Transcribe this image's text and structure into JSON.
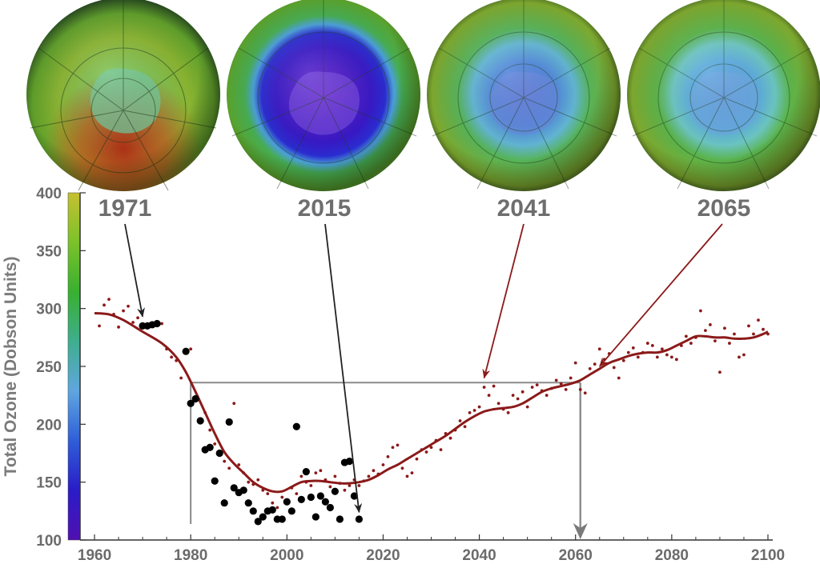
{
  "chart_data": {
    "type": "scatter",
    "ylabel": "Total Ozone (Dobson Units)",
    "xlabel": "",
    "title": "",
    "xlim": [
      1957,
      2101
    ],
    "ylim": [
      100,
      400
    ],
    "x_ticks": [
      1960,
      1980,
      2000,
      2020,
      2040,
      2060,
      2080,
      2100
    ],
    "y_ticks": [
      100,
      150,
      200,
      250,
      300,
      350,
      400
    ],
    "grid": false,
    "colorbar": {
      "range": [
        100,
        400
      ],
      "colors": [
        "#5010b0",
        "#2a1cc8",
        "#2f5ed8",
        "#5fa6e0",
        "#3fae8e",
        "#38b030",
        "#7cc22a",
        "#c6c030"
      ]
    },
    "colors": {
      "observations": "#000000",
      "model_points": "#8b1a1a",
      "model_curve": "#8b1a1a",
      "reference_lines": "#8a8a8a",
      "arrow_dark": "#222222",
      "arrow_red": "#8b1a1a",
      "arrow_gray": "#7a7a7a"
    },
    "map_years": [
      "1971",
      "2015",
      "2041",
      "2065"
    ],
    "map_arrows": [
      {
        "year": "1971",
        "target_x": 1970,
        "target_y": 293,
        "color": "arrow_dark"
      },
      {
        "year": "2015",
        "target_x": 2015,
        "target_y": 124,
        "color": "arrow_dark"
      },
      {
        "year": "2041",
        "target_x": 2041,
        "target_y": 240,
        "color": "arrow_red"
      },
      {
        "year": "2065",
        "target_x": 2065,
        "target_y": 250,
        "color": "arrow_red"
      }
    ],
    "reference_level": {
      "y": 236,
      "x_start": 1980,
      "x_end": 2061,
      "arrow_x": 2061
    },
    "series": [
      {
        "kind": "observations",
        "points": [
          [
            1970,
            285
          ],
          [
            1971,
            285
          ],
          [
            1972,
            286
          ],
          [
            1973,
            287
          ],
          [
            1979,
            263
          ],
          [
            1980,
            218
          ],
          [
            1981,
            222
          ],
          [
            1982,
            203
          ],
          [
            1983,
            178
          ],
          [
            1984,
            180
          ],
          [
            1985,
            151
          ],
          [
            1986,
            175
          ],
          [
            1987,
            132
          ],
          [
            1988,
            202
          ],
          [
            1989,
            145
          ],
          [
            1990,
            141
          ],
          [
            1991,
            143
          ],
          [
            1992,
            132
          ],
          [
            1993,
            125
          ],
          [
            1994,
            116
          ],
          [
            1995,
            120
          ],
          [
            1996,
            125
          ],
          [
            1997,
            126
          ],
          [
            1998,
            118
          ],
          [
            1999,
            118
          ],
          [
            2000,
            133
          ],
          [
            2001,
            125
          ],
          [
            2002,
            198
          ],
          [
            2003,
            135
          ],
          [
            2004,
            159
          ],
          [
            2005,
            137
          ],
          [
            2006,
            120
          ],
          [
            2007,
            138
          ],
          [
            2008,
            133
          ],
          [
            2009,
            128
          ],
          [
            2010,
            142
          ],
          [
            2011,
            118
          ],
          [
            2012,
            167
          ],
          [
            2013,
            168
          ],
          [
            2014,
            138
          ],
          [
            2015,
            118
          ]
        ]
      },
      {
        "kind": "model_points",
        "points": [
          [
            1961,
            285
          ],
          [
            1962,
            303
          ],
          [
            1963,
            308
          ],
          [
            1964,
            295
          ],
          [
            1965,
            284
          ],
          [
            1966,
            298
          ],
          [
            1967,
            302
          ],
          [
            1968,
            288
          ],
          [
            1969,
            292
          ],
          [
            1974,
            287
          ],
          [
            1975,
            265
          ],
          [
            1976,
            258
          ],
          [
            1977,
            255
          ],
          [
            1978,
            240
          ],
          [
            1979,
            264
          ],
          [
            1980,
            265
          ],
          [
            1981,
            220
          ],
          [
            1983,
            210
          ],
          [
            1984,
            195
          ],
          [
            1985,
            183
          ],
          [
            1986,
            175
          ],
          [
            1987,
            168
          ],
          [
            1988,
            162
          ],
          [
            1989,
            218
          ],
          [
            1990,
            165
          ],
          [
            1991,
            158
          ],
          [
            1992,
            150
          ],
          [
            1993,
            148
          ],
          [
            1994,
            152
          ],
          [
            1995,
            143
          ],
          [
            1996,
            140
          ],
          [
            1997,
            132
          ],
          [
            1998,
            128
          ],
          [
            1999,
            137
          ],
          [
            2000,
            134
          ],
          [
            2001,
            145
          ],
          [
            2002,
            140
          ],
          [
            2003,
            155
          ],
          [
            2004,
            150
          ],
          [
            2005,
            147
          ],
          [
            2006,
            158
          ],
          [
            2007,
            160
          ],
          [
            2008,
            152
          ],
          [
            2009,
            146
          ],
          [
            2010,
            155
          ],
          [
            2011,
            149
          ],
          [
            2012,
            143
          ],
          [
            2013,
            147
          ],
          [
            2014,
            152
          ],
          [
            2015,
            147
          ],
          [
            2016,
            151
          ],
          [
            2017,
            155
          ],
          [
            2018,
            160
          ],
          [
            2019,
            157
          ],
          [
            2020,
            165
          ],
          [
            2021,
            172
          ],
          [
            2022,
            180
          ],
          [
            2023,
            182
          ],
          [
            2024,
            162
          ],
          [
            2025,
            155
          ],
          [
            2026,
            158
          ],
          [
            2027,
            170
          ],
          [
            2028,
            178
          ],
          [
            2029,
            176
          ],
          [
            2030,
            180
          ],
          [
            2031,
            186
          ],
          [
            2032,
            178
          ],
          [
            2033,
            192
          ],
          [
            2034,
            188
          ],
          [
            2035,
            195
          ],
          [
            2036,
            203
          ],
          [
            2037,
            198
          ],
          [
            2038,
            210
          ],
          [
            2039,
            212
          ],
          [
            2040,
            215
          ],
          [
            2041,
            232
          ],
          [
            2042,
            225
          ],
          [
            2043,
            233
          ],
          [
            2044,
            218
          ],
          [
            2045,
            213
          ],
          [
            2046,
            210
          ],
          [
            2047,
            225
          ],
          [
            2048,
            222
          ],
          [
            2049,
            228
          ],
          [
            2050,
            215
          ],
          [
            2051,
            232
          ],
          [
            2052,
            234
          ],
          [
            2053,
            229
          ],
          [
            2054,
            225
          ],
          [
            2055,
            231
          ],
          [
            2056,
            238
          ],
          [
            2057,
            235
          ],
          [
            2058,
            230
          ],
          [
            2059,
            240
          ],
          [
            2060,
            253
          ],
          [
            2061,
            230
          ],
          [
            2062,
            227
          ],
          [
            2063,
            248
          ],
          [
            2064,
            252
          ],
          [
            2065,
            265
          ],
          [
            2066,
            256
          ],
          [
            2067,
            261
          ],
          [
            2068,
            249
          ],
          [
            2069,
            240
          ],
          [
            2070,
            255
          ],
          [
            2071,
            262
          ],
          [
            2072,
            266
          ],
          [
            2073,
            258
          ],
          [
            2074,
            262
          ],
          [
            2075,
            270
          ],
          [
            2076,
            268
          ],
          [
            2077,
            258
          ],
          [
            2078,
            265
          ],
          [
            2079,
            260
          ],
          [
            2080,
            258
          ],
          [
            2081,
            256
          ],
          [
            2082,
            268
          ],
          [
            2083,
            276
          ],
          [
            2084,
            270
          ],
          [
            2085,
            275
          ],
          [
            2086,
            298
          ],
          [
            2087,
            281
          ],
          [
            2088,
            286
          ],
          [
            2089,
            272
          ],
          [
            2090,
            245
          ],
          [
            2091,
            283
          ],
          [
            2092,
            270
          ],
          [
            2093,
            278
          ],
          [
            2094,
            258
          ],
          [
            2095,
            260
          ],
          [
            2096,
            285
          ],
          [
            2097,
            278
          ],
          [
            2098,
            290
          ],
          [
            2099,
            282
          ],
          [
            2100,
            278
          ]
        ]
      },
      {
        "kind": "model_curve",
        "points": [
          [
            1960,
            296
          ],
          [
            1963,
            295
          ],
          [
            1966,
            290
          ],
          [
            1970,
            280
          ],
          [
            1974,
            270
          ],
          [
            1977,
            258
          ],
          [
            1979,
            245
          ],
          [
            1981,
            228
          ],
          [
            1983,
            210
          ],
          [
            1985,
            192
          ],
          [
            1987,
            176
          ],
          [
            1989,
            166
          ],
          [
            1991,
            158
          ],
          [
            1993,
            150
          ],
          [
            1995,
            145
          ],
          [
            1997,
            142
          ],
          [
            1999,
            142
          ],
          [
            2001,
            146
          ],
          [
            2003,
            150
          ],
          [
            2005,
            151
          ],
          [
            2007,
            151
          ],
          [
            2009,
            150
          ],
          [
            2011,
            149
          ],
          [
            2013,
            149
          ],
          [
            2015,
            150
          ],
          [
            2017,
            152
          ],
          [
            2019,
            156
          ],
          [
            2021,
            161
          ],
          [
            2023,
            165
          ],
          [
            2025,
            170
          ],
          [
            2027,
            175
          ],
          [
            2029,
            180
          ],
          [
            2031,
            185
          ],
          [
            2033,
            190
          ],
          [
            2035,
            196
          ],
          [
            2037,
            202
          ],
          [
            2039,
            207
          ],
          [
            2041,
            211
          ],
          [
            2043,
            213
          ],
          [
            2045,
            214
          ],
          [
            2047,
            215
          ],
          [
            2049,
            218
          ],
          [
            2051,
            223
          ],
          [
            2053,
            228
          ],
          [
            2055,
            231
          ],
          [
            2057,
            233
          ],
          [
            2059,
            235
          ],
          [
            2061,
            238
          ],
          [
            2063,
            243
          ],
          [
            2065,
            248
          ],
          [
            2067,
            253
          ],
          [
            2069,
            256
          ],
          [
            2071,
            259
          ],
          [
            2073,
            261
          ],
          [
            2075,
            262
          ],
          [
            2077,
            262
          ],
          [
            2079,
            264
          ],
          [
            2081,
            268
          ],
          [
            2083,
            272
          ],
          [
            2085,
            276
          ],
          [
            2087,
            276
          ],
          [
            2089,
            275
          ],
          [
            2091,
            275
          ],
          [
            2093,
            274
          ],
          [
            2095,
            274
          ],
          [
            2097,
            275
          ],
          [
            2099,
            278
          ],
          [
            2100,
            280
          ]
        ]
      }
    ]
  }
}
